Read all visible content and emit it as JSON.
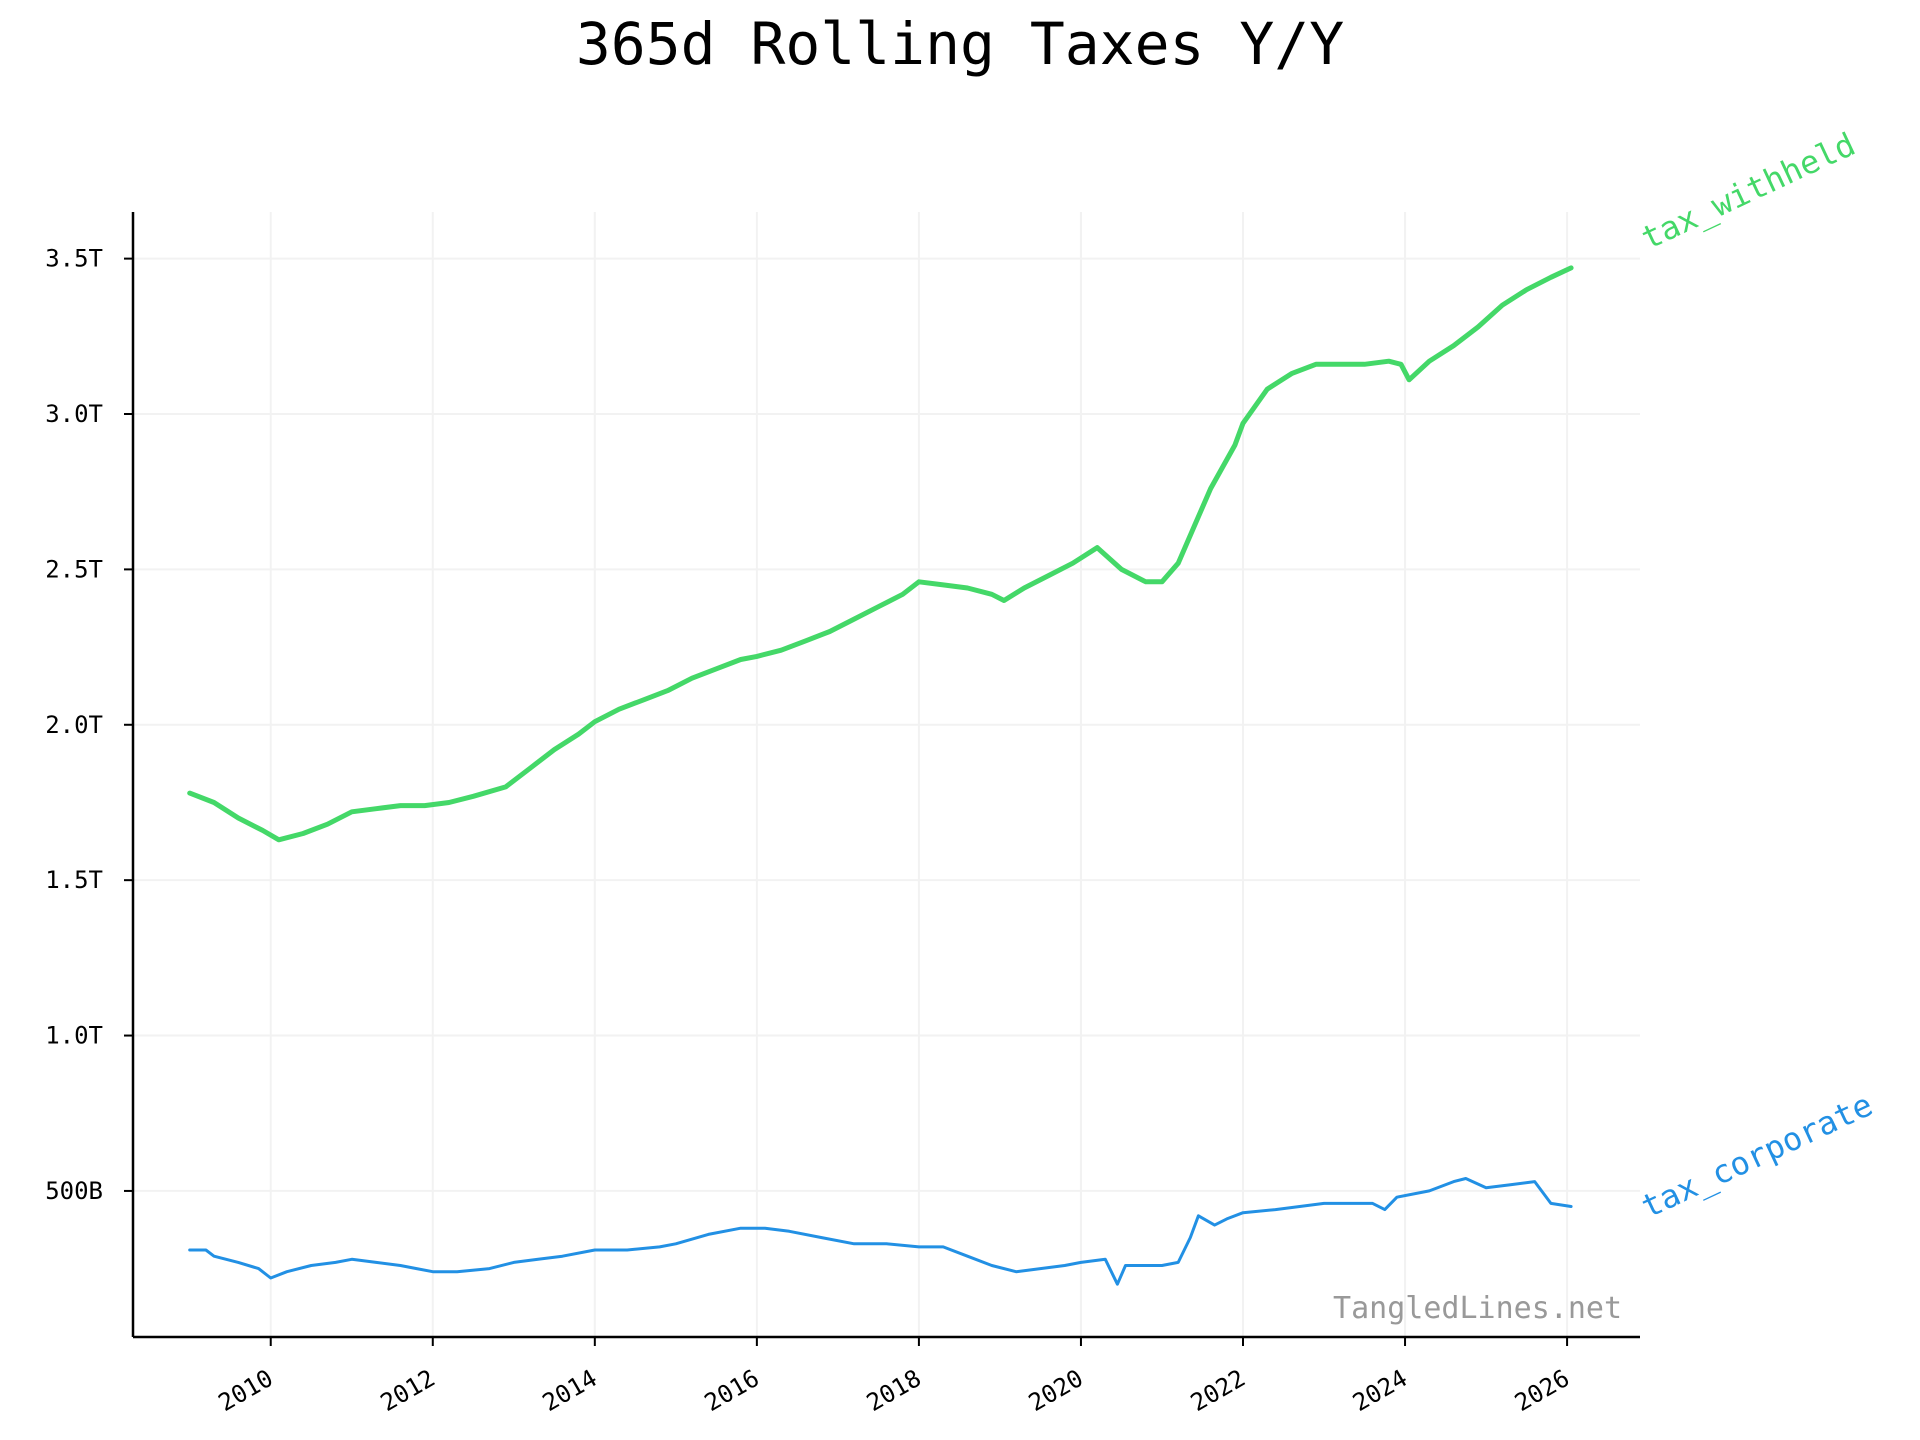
{
  "chart_data": {
    "type": "line",
    "title": "365d Rolling Taxes Y/Y",
    "xlabel": "",
    "ylabel": "",
    "xlim": [
      2008.3,
      2026.9
    ],
    "ylim": [
      0.03,
      3.65
    ],
    "grid": true,
    "legend": "inline labels at right end of each line, rotated",
    "x_ticks": [
      {
        "value": 2010,
        "label": "2010"
      },
      {
        "value": 2012,
        "label": "2012"
      },
      {
        "value": 2014,
        "label": "2014"
      },
      {
        "value": 2016,
        "label": "2016"
      },
      {
        "value": 2018,
        "label": "2018"
      },
      {
        "value": 2020,
        "label": "2020"
      },
      {
        "value": 2022,
        "label": "2022"
      },
      {
        "value": 2024,
        "label": "2024"
      },
      {
        "value": 2026,
        "label": "2026"
      }
    ],
    "y_ticks": [
      {
        "value": 0.5,
        "label": "500B"
      },
      {
        "value": 1.0,
        "label": "1.0T"
      },
      {
        "value": 1.5,
        "label": "1.5T"
      },
      {
        "value": 2.0,
        "label": "2.0T"
      },
      {
        "value": 2.5,
        "label": "2.5T"
      },
      {
        "value": 3.0,
        "label": "3.0T"
      },
      {
        "value": 3.5,
        "label": "3.5T"
      }
    ],
    "y_unit": "trillions",
    "series": [
      {
        "name": "tax_withheld",
        "color": "#44d868",
        "x": [
          2009.0,
          2009.3,
          2009.6,
          2009.9,
          2010.1,
          2010.4,
          2010.7,
          2011.0,
          2011.3,
          2011.6,
          2011.9,
          2012.2,
          2012.5,
          2012.9,
          2013.2,
          2013.5,
          2013.8,
          2014.0,
          2014.3,
          2014.6,
          2014.9,
          2015.2,
          2015.5,
          2015.8,
          2016.0,
          2016.3,
          2016.6,
          2016.9,
          2017.2,
          2017.5,
          2017.8,
          2018.0,
          2018.3,
          2018.6,
          2018.9,
          2019.05,
          2019.3,
          2019.6,
          2019.9,
          2020.2,
          2020.5,
          2020.8,
          2021.0,
          2021.2,
          2021.4,
          2021.6,
          2021.9,
          2022.0,
          2022.3,
          2022.6,
          2022.9,
          2023.2,
          2023.5,
          2023.8,
          2023.95,
          2024.05,
          2024.3,
          2024.6,
          2024.9,
          2025.2,
          2025.5,
          2025.8,
          2026.05
        ],
        "values": [
          1.78,
          1.75,
          1.7,
          1.66,
          1.63,
          1.65,
          1.68,
          1.72,
          1.73,
          1.74,
          1.74,
          1.75,
          1.77,
          1.8,
          1.86,
          1.92,
          1.97,
          2.01,
          2.05,
          2.08,
          2.11,
          2.15,
          2.18,
          2.21,
          2.22,
          2.24,
          2.27,
          2.3,
          2.34,
          2.38,
          2.42,
          2.46,
          2.45,
          2.44,
          2.42,
          2.4,
          2.44,
          2.48,
          2.52,
          2.57,
          2.5,
          2.46,
          2.46,
          2.52,
          2.64,
          2.76,
          2.9,
          2.97,
          3.08,
          3.13,
          3.16,
          3.16,
          3.16,
          3.17,
          3.16,
          3.11,
          3.17,
          3.22,
          3.28,
          3.35,
          3.4,
          3.44,
          3.47
        ]
      },
      {
        "name": "tax_corporate",
        "color": "#2290e4",
        "x": [
          2009.0,
          2009.2,
          2009.3,
          2009.6,
          2009.85,
          2010.0,
          2010.2,
          2010.5,
          2010.8,
          2011.0,
          2011.3,
          2011.6,
          2011.8,
          2012.0,
          2012.3,
          2012.7,
          2013.0,
          2013.3,
          2013.6,
          2014.0,
          2014.4,
          2014.8,
          2015.0,
          2015.4,
          2015.8,
          2016.1,
          2016.4,
          2016.8,
          2017.2,
          2017.6,
          2018.0,
          2018.3,
          2018.6,
          2018.9,
          2019.2,
          2019.5,
          2019.8,
          2020.0,
          2020.3,
          2020.45,
          2020.55,
          2020.8,
          2021.0,
          2021.2,
          2021.35,
          2021.45,
          2021.65,
          2021.8,
          2022.0,
          2022.4,
          2022.7,
          2023.0,
          2023.3,
          2023.6,
          2023.75,
          2023.9,
          2024.3,
          2024.6,
          2024.75,
          2025.0,
          2025.3,
          2025.6,
          2025.8,
          2026.05
        ],
        "values": [
          0.31,
          0.31,
          0.29,
          0.27,
          0.25,
          0.22,
          0.24,
          0.26,
          0.27,
          0.28,
          0.27,
          0.26,
          0.25,
          0.24,
          0.24,
          0.25,
          0.27,
          0.28,
          0.29,
          0.31,
          0.31,
          0.32,
          0.33,
          0.36,
          0.38,
          0.38,
          0.37,
          0.35,
          0.33,
          0.33,
          0.32,
          0.32,
          0.29,
          0.26,
          0.24,
          0.25,
          0.26,
          0.27,
          0.28,
          0.2,
          0.26,
          0.26,
          0.26,
          0.27,
          0.35,
          0.42,
          0.39,
          0.41,
          0.43,
          0.44,
          0.45,
          0.46,
          0.46,
          0.46,
          0.44,
          0.48,
          0.5,
          0.53,
          0.54,
          0.51,
          0.52,
          0.53,
          0.46,
          0.45
        ]
      }
    ],
    "annotations": [
      {
        "text": "TangledLines.net",
        "position": "bottom-right"
      }
    ]
  }
}
